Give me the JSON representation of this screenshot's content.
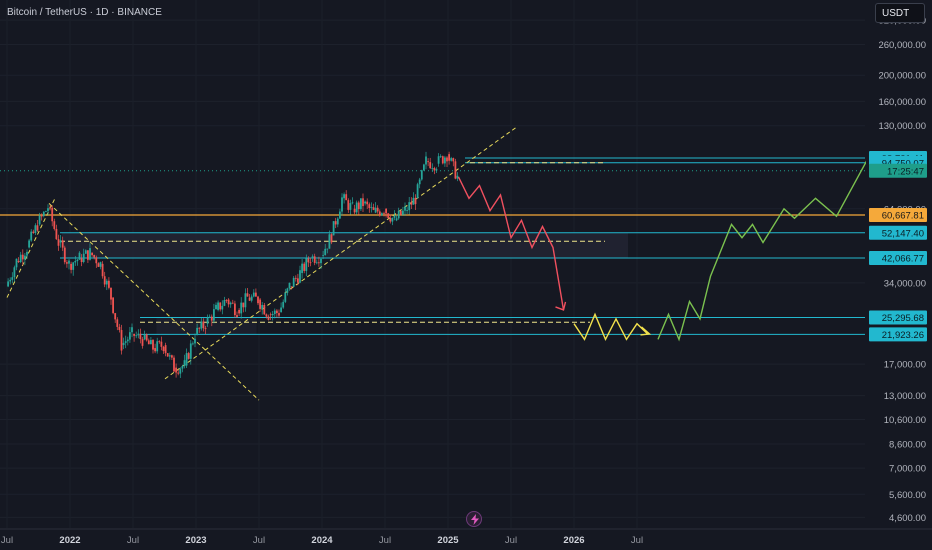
{
  "header": {
    "symbol_title": "Bitcoin / TetherUS · 1D · BINANCE",
    "currency": "USDT"
  },
  "chart_data": {
    "type": "line",
    "title": "Bitcoin / TetherUS · 1D · BINANCE",
    "xlabel": "",
    "ylabel": "",
    "scale": "log",
    "ylim": [
      4200,
      380000
    ],
    "x_ticks": [
      "Jul",
      "2022",
      "Jul",
      "2023",
      "Jul",
      "2024",
      "Jul",
      "2025",
      "Jul",
      "2026",
      "Jul"
    ],
    "x_ticks_bold": [
      "2022",
      "2023",
      "2024",
      "2025",
      "2026"
    ],
    "y_ticks": [
      320000,
      260000,
      200000,
      160000,
      130000,
      64000,
      34000,
      17000,
      13000,
      10600,
      8600,
      7000,
      5600,
      4600
    ],
    "y_tick_labels": [
      "320,000.00",
      "260,000.00",
      "200,000.00",
      "160,000.00",
      "130,000.00",
      "64,000.00",
      "34,000.00",
      "17,000.00",
      "13,000.00",
      "10,600.00",
      "8,600.00",
      "7,000.00",
      "5,600.00",
      "4,600.00"
    ],
    "price_labels": [
      {
        "text": "98,721.41",
        "value": 98721.41,
        "color": "#22b8cf"
      },
      {
        "text": "94,750.07",
        "value": 94750.07,
        "color": "#22b8cf"
      },
      {
        "text": "17:25:47",
        "value": 88500,
        "color": "#1e9e8a"
      },
      {
        "text": "60,667.81",
        "value": 60667.81,
        "color": "#f5a93a"
      },
      {
        "text": "52,147.40",
        "value": 52147.4,
        "color": "#22b8cf"
      },
      {
        "text": "42,066.77",
        "value": 42066.77,
        "color": "#22b8cf"
      },
      {
        "text": "25,295.68",
        "value": 25295.68,
        "color": "#22b8cf"
      },
      {
        "text": "21,923.26",
        "value": 21923.26,
        "color": "#22b8cf"
      }
    ],
    "price_history": [
      [
        "2021-07",
        33000
      ],
      [
        "2021-08",
        41000
      ],
      [
        "2021-09",
        46000
      ],
      [
        "2021-10",
        56000
      ],
      [
        "2021-11",
        65000
      ],
      [
        "2021-12",
        48000
      ],
      [
        "2022-01",
        40000
      ],
      [
        "2022-02",
        42000
      ],
      [
        "2022-03",
        44000
      ],
      [
        "2022-04",
        40000
      ],
      [
        "2022-05",
        30000
      ],
      [
        "2022-06",
        20000
      ],
      [
        "2022-07",
        22000
      ],
      [
        "2022-08",
        21000
      ],
      [
        "2022-09",
        19500
      ],
      [
        "2022-10",
        20000
      ],
      [
        "2022-11",
        16500
      ],
      [
        "2022-12",
        16800
      ],
      [
        "2023-01",
        22000
      ],
      [
        "2023-02",
        24000
      ],
      [
        "2023-03",
        27000
      ],
      [
        "2023-04",
        29500
      ],
      [
        "2023-05",
        27000
      ],
      [
        "2023-06",
        30000
      ],
      [
        "2023-07",
        29500
      ],
      [
        "2023-08",
        26000
      ],
      [
        "2023-09",
        26500
      ],
      [
        "2023-10",
        33000
      ],
      [
        "2023-11",
        37000
      ],
      [
        "2023-12",
        42000
      ],
      [
        "2024-01",
        43000
      ],
      [
        "2024-02",
        51000
      ],
      [
        "2024-03",
        70000
      ],
      [
        "2024-04",
        64000
      ],
      [
        "2024-05",
        67000
      ],
      [
        "2024-06",
        62000
      ],
      [
        "2024-07",
        64000
      ],
      [
        "2024-08",
        58000
      ],
      [
        "2024-09",
        63000
      ],
      [
        "2024-10",
        70000
      ],
      [
        "2024-11",
        96000
      ],
      [
        "2024-12",
        94000
      ],
      [
        "2025-01",
        102000
      ],
      [
        "2025-02",
        84000
      ]
    ],
    "projection_red": [
      [
        "2025-02",
        84000
      ],
      [
        "2025-03",
        70000
      ],
      [
        "2025-04",
        78000
      ],
      [
        "2025-05",
        63000
      ],
      [
        "2025-06",
        72000
      ],
      [
        "2025-07",
        50000
      ],
      [
        "2025-08",
        58000
      ],
      [
        "2025-09",
        46000
      ],
      [
        "2025-10",
        55000
      ],
      [
        "2025-11",
        46000
      ],
      [
        "2025-12",
        27000
      ]
    ],
    "projection_yellow": [
      [
        "2026-01",
        24000
      ],
      [
        "2026-02",
        21000
      ],
      [
        "2026-03",
        26000
      ],
      [
        "2026-04",
        21000
      ],
      [
        "2026-05",
        25000
      ],
      [
        "2026-06",
        21000
      ],
      [
        "2026-07",
        24000
      ],
      [
        "2026-08",
        22000
      ]
    ],
    "projection_green": [
      [
        "2026-09",
        21000
      ],
      [
        "2026-10",
        26000
      ],
      [
        "2026-11",
        21000
      ],
      [
        "2026-12",
        29000
      ],
      [
        "2027-01",
        25000
      ],
      [
        "2027-02",
        36000
      ],
      [
        "2027-04",
        56000
      ],
      [
        "2027-05",
        50000
      ],
      [
        "2027-06",
        56000
      ],
      [
        "2027-07",
        48000
      ],
      [
        "2027-09",
        64000
      ],
      [
        "2027-10",
        59000
      ],
      [
        "2027-12",
        70000
      ],
      [
        "2028-02",
        60000
      ],
      [
        "2028-09",
        190000
      ]
    ],
    "colors": {
      "candles_up": "#26a69a",
      "candles_down": "#ef5350",
      "red_path": "#f0505f",
      "yellow_path": "#f2e14c",
      "green_path": "#7bc14f",
      "support_lines": "#22b8cf",
      "dashed": "#d8d27a"
    }
  }
}
